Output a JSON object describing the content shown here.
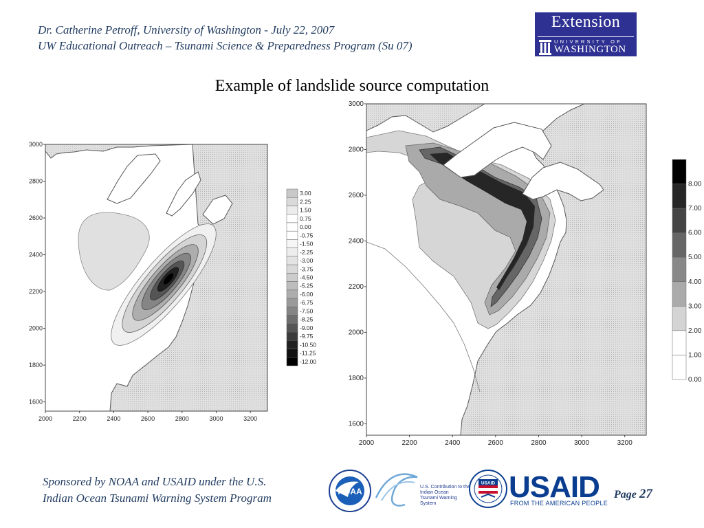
{
  "header": {
    "line1": "Dr. Catherine Petroff, University of Washington - July 22, 2007",
    "line2": "UW Educational Outreach – Tsunami Science & Preparedness Program (Su 07)"
  },
  "extension_logo": {
    "word": "Extension",
    "university": "UNIVERSITY OF",
    "washington": "WASHINGTON"
  },
  "title": "Example of landslide source computation",
  "left_plot": {
    "y_ticks": [
      "3000",
      "2800",
      "2600",
      "2400",
      "2200",
      "2000",
      "1800",
      "1600"
    ],
    "x_ticks": [
      "2000",
      "2200",
      "2400",
      "2600",
      "2800",
      "3000",
      "3200"
    ],
    "legend": [
      "3.00",
      "2.25",
      "1.50",
      "0.75",
      "0.00",
      "-0.75",
      "-1.50",
      "-2.25",
      "-3.00",
      "-3.75",
      "-4.50",
      "-5.25",
      "-6.00",
      "-6.75",
      "-7.50",
      "-8.25",
      "-9.00",
      "-9.75",
      "-10.50",
      "-11.25",
      "-12.00"
    ],
    "legend_colors": [
      "#c8c8c8",
      "#dadada",
      "#ececec",
      "#ffffff",
      "#ffffff",
      "#ffffff",
      "#f6f6f6",
      "#ededed",
      "#e3e3e3",
      "#d9d9d9",
      "#cccccc",
      "#bdbdbd",
      "#adadad",
      "#9a9a9a",
      "#858585",
      "#6e6e6e",
      "#555555",
      "#3c3c3c",
      "#222222",
      "#111111",
      "#000000"
    ]
  },
  "right_plot": {
    "y_ticks": [
      "3000",
      "2800",
      "2600",
      "2400",
      "2200",
      "2000",
      "1800",
      "1600"
    ],
    "x_ticks": [
      "2000",
      "2200",
      "2400",
      "2600",
      "2800",
      "3000",
      "3200"
    ],
    "legend": [
      "8.00",
      "7.00",
      "6.00",
      "5.00",
      "4.00",
      "3.00",
      "2.00",
      "1.00",
      "0.00"
    ],
    "legend_colors": [
      "#000000",
      "#262626",
      "#444444",
      "#666666",
      "#888888",
      "#aaaaaa",
      "#d4d4d4",
      "#ffffff",
      "#ffffff"
    ]
  },
  "footer": {
    "line1": "Sponsored by NOAA and USAID under the U.S.",
    "line2": "Indian Ocean Tsunami Warning System Program",
    "page_label": "Page",
    "page_number": "27"
  },
  "logos": {
    "noaa": "NOAA",
    "iotws_lines": [
      "U.S. Contribution to the",
      "Indian Ocean",
      "Tsunami Warning",
      "System"
    ],
    "usaid_badge": "USAID",
    "usaid": "USAID",
    "usaid_tagline": "FROM THE AMERICAN PEOPLE"
  }
}
